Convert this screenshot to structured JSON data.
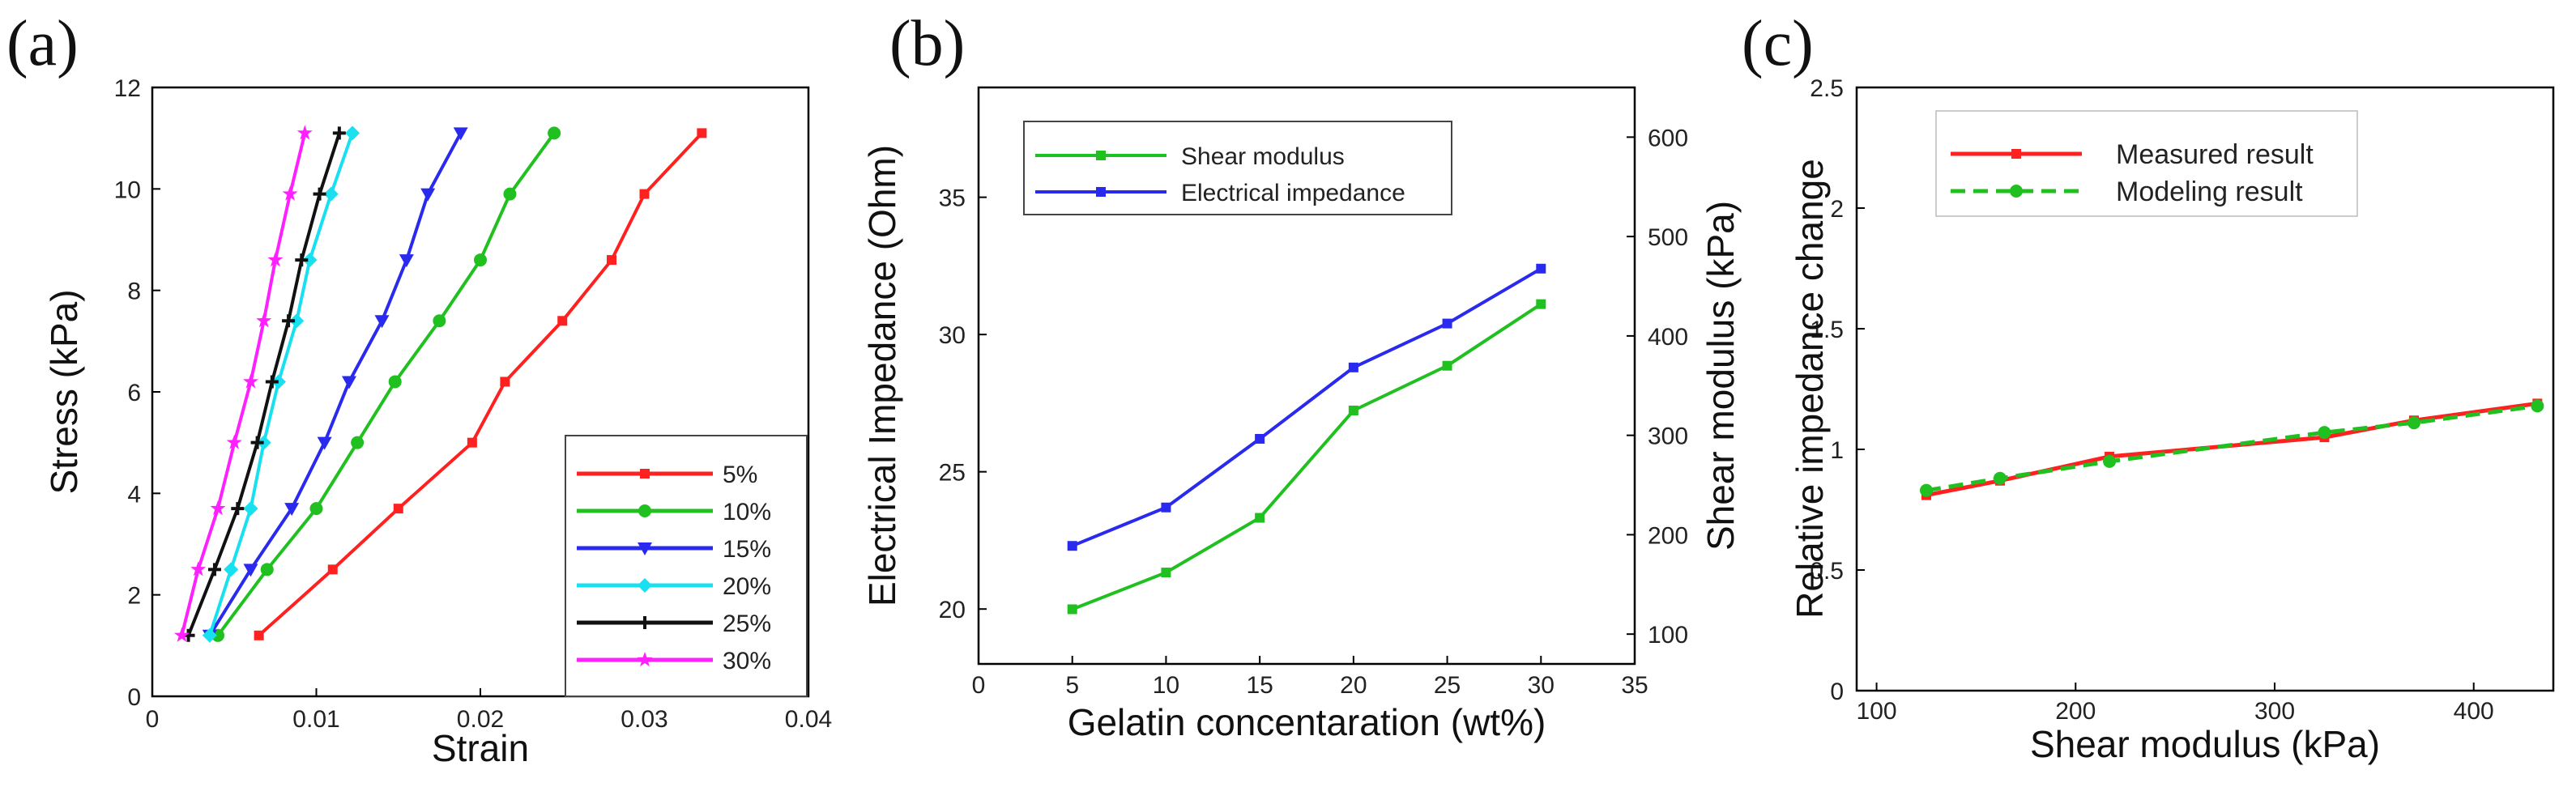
{
  "colors": {
    "red": "#ff2020",
    "green": "#20c020",
    "blue": "#2a2aee",
    "cyan": "#18e0f0",
    "black": "#111111",
    "magenta": "#ff20ff"
  },
  "chart_data": [
    {
      "panel": "(a)",
      "type": "line",
      "xlabel": "Strain",
      "ylabel": "Stress (kPa)",
      "xlim": [
        0,
        0.04
      ],
      "ylim": [
        0,
        12
      ],
      "xticks": [
        "0",
        "0.01",
        "0.02",
        "0.03",
        "0.04"
      ],
      "yticks": [
        "0",
        "2",
        "4",
        "6",
        "8",
        "10",
        "12"
      ],
      "legend_position": "bottom-right",
      "series": [
        {
          "name": "5%",
          "color": "red",
          "marker": "square",
          "x": [
            0.0065,
            0.011,
            0.015,
            0.0195,
            0.0215,
            0.025,
            0.028,
            0.03,
            0.0335
          ],
          "y": [
            1.2,
            2.5,
            3.7,
            5.0,
            6.2,
            7.4,
            8.6,
            9.9,
            11.1
          ]
        },
        {
          "name": "10%",
          "color": "green",
          "marker": "circle",
          "x": [
            0.004,
            0.007,
            0.01,
            0.0125,
            0.0148,
            0.0175,
            0.02,
            0.0218,
            0.0245
          ],
          "y": [
            1.2,
            2.5,
            3.7,
            5.0,
            6.2,
            7.4,
            8.6,
            9.9,
            11.1
          ]
        },
        {
          "name": "15%",
          "color": "blue",
          "marker": "triangle-down",
          "x": [
            0.0035,
            0.006,
            0.0085,
            0.0105,
            0.012,
            0.014,
            0.0155,
            0.0168,
            0.0188
          ],
          "y": [
            1.2,
            2.5,
            3.7,
            5.0,
            6.2,
            7.4,
            8.6,
            9.9,
            11.1
          ]
        },
        {
          "name": "20%",
          "color": "cyan",
          "marker": "diamond",
          "x": [
            0.0035,
            0.0048,
            0.006,
            0.0068,
            0.0077,
            0.0088,
            0.0096,
            0.0109,
            0.0122
          ],
          "y": [
            1.2,
            2.5,
            3.7,
            5.0,
            6.2,
            7.4,
            8.6,
            9.9,
            11.1
          ]
        },
        {
          "name": "25%",
          "color": "black",
          "marker": "plus",
          "x": [
            0.0022,
            0.0038,
            0.0052,
            0.0064,
            0.0073,
            0.0083,
            0.0091,
            0.0102,
            0.0114
          ],
          "y": [
            1.2,
            2.5,
            3.7,
            5.0,
            6.2,
            7.4,
            8.6,
            9.9,
            11.1
          ]
        },
        {
          "name": "30%",
          "color": "magenta",
          "marker": "star",
          "x": [
            0.0018,
            0.0028,
            0.004,
            0.005,
            0.006,
            0.0068,
            0.0075,
            0.0084,
            0.0093
          ],
          "y": [
            1.2,
            2.5,
            3.7,
            5.0,
            6.2,
            7.4,
            8.6,
            9.9,
            11.1
          ]
        }
      ]
    },
    {
      "panel": "(b)",
      "type": "line",
      "xlabel": "Gelatin concentaration (wt%)",
      "ylabel": "Electrical Impedance (Ohm)",
      "ylabel_right": "Shear modulus (kPa)",
      "xlim": [
        0,
        35
      ],
      "ylim": [
        18,
        39
      ],
      "ylim_right": [
        70,
        650
      ],
      "xticks": [
        "0",
        "5",
        "10",
        "15",
        "20",
        "25",
        "30",
        "35"
      ],
      "yticks": [
        "20",
        "25",
        "30",
        "35"
      ],
      "yticks_right": [
        "100",
        "200",
        "300",
        "400",
        "500",
        "600"
      ],
      "legend_position": "top-left",
      "series": [
        {
          "name": "Shear modulus",
          "color": "green",
          "marker": "square",
          "axis": "right",
          "x": [
            5,
            10,
            15,
            20,
            25,
            30
          ],
          "y": [
            125,
            162,
            217,
            325,
            370,
            432
          ]
        },
        {
          "name": "Electrical impedance",
          "color": "blue",
          "marker": "square",
          "axis": "left",
          "x": [
            5,
            10,
            15,
            20,
            25,
            30
          ],
          "y": [
            22.3,
            23.7,
            26.2,
            28.8,
            30.4,
            32.4
          ]
        }
      ]
    },
    {
      "panel": "(c)",
      "type": "line",
      "xlabel": "Shear modulus (kPa)",
      "ylabel": "Relative impedance change",
      "xlim": [
        90,
        440
      ],
      "ylim": [
        0,
        2.5
      ],
      "xticks": [
        "100",
        "200",
        "300",
        "400"
      ],
      "yticks": [
        "0",
        "0.5",
        "1",
        "1.5",
        "2",
        "2.5"
      ],
      "legend_position": "top-left",
      "series": [
        {
          "name": "Measured result",
          "color": "red",
          "marker": "square",
          "dash": "solid",
          "x": [
            125,
            162,
            217,
            325,
            370,
            432
          ],
          "y": [
            0.81,
            0.87,
            0.97,
            1.05,
            1.12,
            1.19
          ]
        },
        {
          "name": "Modeling result",
          "color": "green",
          "marker": "circle",
          "dash": "dashed",
          "x": [
            125,
            162,
            217,
            325,
            370,
            432
          ],
          "y": [
            0.83,
            0.88,
            0.95,
            1.07,
            1.11,
            1.18
          ]
        }
      ]
    }
  ]
}
